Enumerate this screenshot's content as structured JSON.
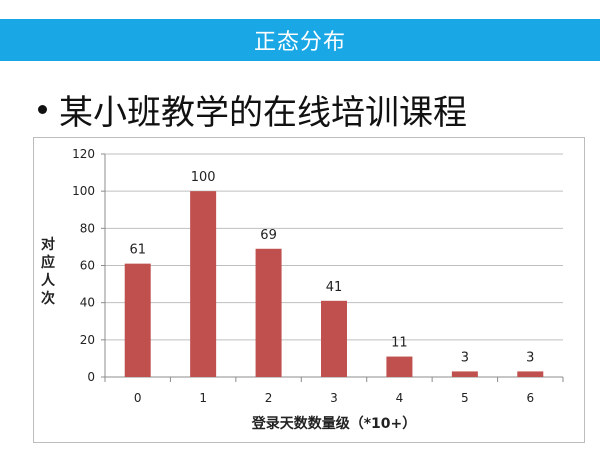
{
  "banner": {
    "title": "正态分布"
  },
  "heading": {
    "text": "某小班教学的在线培训课程"
  },
  "colors": {
    "banner": "#1aa7e6",
    "bar": "#c0504d",
    "grid": "#bfbfbf",
    "axis": "#8c8c8c"
  },
  "chart_data": {
    "type": "bar",
    "categories": [
      "0",
      "1",
      "2",
      "3",
      "4",
      "5",
      "6"
    ],
    "values": [
      61,
      100,
      69,
      41,
      11,
      3,
      3
    ],
    "data_labels": [
      "61",
      "100",
      "69",
      "41",
      "11",
      "3",
      "3"
    ],
    "title": "",
    "xlabel": "登录天数数量级（*10+）",
    "ylabel": "对应人次",
    "ylim": [
      0,
      120
    ],
    "yticks": [
      0,
      20,
      40,
      60,
      80,
      100,
      120
    ],
    "ytick_labels": [
      "0",
      "20",
      "40",
      "60",
      "80",
      "100",
      "120"
    ],
    "grid": true,
    "legend": "none"
  }
}
